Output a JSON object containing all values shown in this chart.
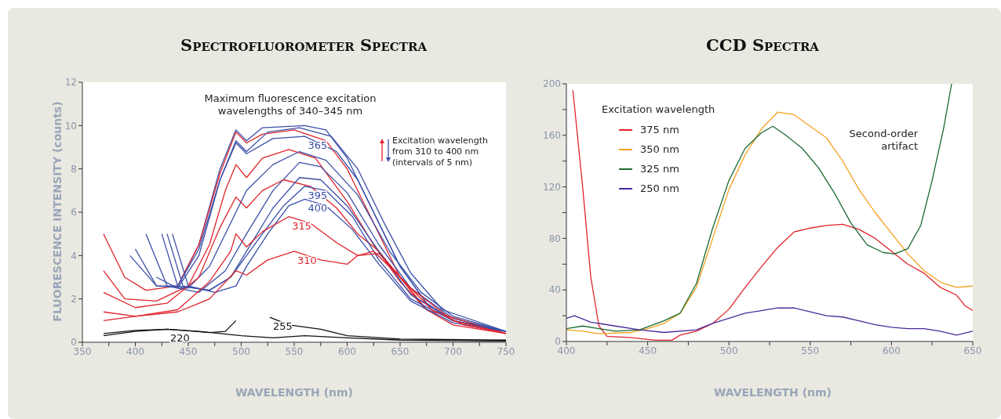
{
  "chart_data": [
    {
      "type": "line",
      "title": "Spectrofluorometer Spectra",
      "xlabel": "WAVELENGTH (nm)",
      "ylabel": "FLUORESCENCE INTENSITY (counts)",
      "annotations": [
        "Maximum fluorescence excitation wavelengths of 340–345 nm",
        "Excitation wavelength from 310 to 400 nm (intervals of 5 nm)"
      ],
      "xlim": [
        350,
        750
      ],
      "ylim": [
        0,
        12
      ],
      "xticks": [
        350,
        {
          "value": 375,
          "label": null
        },
        400,
        {
          "value": 425,
          "label": null
        },
        450,
        {
          "value": 475,
          "label": null
        },
        500,
        {
          "value": 525,
          "label": null
        },
        550,
        {
          "value": 575,
          "label": null
        },
        600,
        {
          "value": 625,
          "label": null
        },
        650,
        {
          "value": 675,
          "label": null
        },
        700,
        {
          "value": 725,
          "label": null
        },
        750
      ],
      "yticks": [
        0,
        2,
        4,
        6,
        8,
        10,
        12
      ],
      "series": [
        {
          "color": "#3a4fa8",
          "x": [
            440,
            460,
            480,
            495,
            505,
            520,
            560,
            580,
            600,
            625,
            650,
            675,
            700,
            750
          ],
          "values": [
            2.6,
            4.5,
            8,
            9.8,
            9.3,
            9.9,
            10,
            9.8,
            8.5,
            6,
            3.5,
            1.8,
            1,
            0.5
          ]
        },
        {
          "color": "#e0242c",
          "x": [
            370,
            390,
            410,
            440,
            460,
            480,
            495,
            505,
            520,
            550,
            580,
            600,
            625,
            650,
            675,
            700,
            750
          ],
          "values": [
            5,
            3,
            2.4,
            2.6,
            4.5,
            7.8,
            9.7,
            9.2,
            9.6,
            9.8,
            9.3,
            8,
            5.5,
            3,
            1.5,
            0.8,
            0.4
          ]
        },
        {
          "color": "#3a4fa8",
          "x": [
            420,
            440,
            460,
            480,
            495,
            505,
            525,
            555,
            585,
            610,
            635,
            660,
            690,
            750
          ],
          "values": [
            3,
            2.5,
            4,
            7.5,
            9.3,
            8.8,
            9.7,
            9.9,
            9.5,
            8,
            5.5,
            3.2,
            1.5,
            0.5
          ]
        },
        {
          "name": "365",
          "color": "#3a4fa8",
          "x": [
            400,
            420,
            440,
            460,
            480,
            495,
            505,
            530,
            560,
            590,
            610,
            630,
            650,
            675,
            700,
            750
          ],
          "values": [
            4.3,
            2.6,
            2.6,
            4.3,
            7.5,
            9.2,
            8.7,
            9.4,
            9.5,
            8.8,
            7.5,
            5.5,
            3.5,
            1.8,
            1,
            0.5
          ]
        },
        {
          "color": "#e0242c",
          "x": [
            370,
            390,
            420,
            450,
            470,
            485,
            495,
            505,
            520,
            545,
            570,
            600,
            625,
            650,
            675,
            750
          ],
          "values": [
            3.3,
            2,
            1.9,
            2.6,
            4.5,
            7,
            8.2,
            7.6,
            8.5,
            8.9,
            8.5,
            6.5,
            4.5,
            2.8,
            1.5,
            0.4
          ]
        },
        {
          "color": "#3a4fa8",
          "x": [
            395,
            420,
            450,
            470,
            490,
            505,
            530,
            555,
            580,
            610,
            640,
            670,
            700,
            750
          ],
          "values": [
            4,
            2.6,
            2.5,
            3.5,
            5.5,
            7,
            8.2,
            8.8,
            8.4,
            6.8,
            4.2,
            2.3,
            1.2,
            0.5
          ]
        },
        {
          "color": "#3a4fa8",
          "x": [
            410,
            430,
            460,
            485,
            505,
            530,
            555,
            575,
            600,
            630,
            660,
            700,
            750
          ],
          "values": [
            5,
            2.6,
            2.3,
            3.3,
            5,
            7,
            8.3,
            8.1,
            6.9,
            4.5,
            2.5,
            1.1,
            0.5
          ]
        },
        {
          "color": "#e0242c",
          "x": [
            370,
            400,
            430,
            460,
            480,
            495,
            505,
            520,
            540,
            565,
            590,
            610,
            630,
            650,
            675,
            750
          ],
          "values": [
            2.3,
            1.6,
            1.8,
            3,
            5.3,
            6.7,
            6.2,
            7,
            7.5,
            7.2,
            6.2,
            5,
            4.2,
            3,
            1.5,
            0.4
          ]
        },
        {
          "color": "#3a4fa8",
          "x": [
            425,
            440,
            470,
            490,
            505,
            530,
            555,
            575,
            600,
            630,
            660,
            700,
            750
          ],
          "values": [
            5,
            2.6,
            2.4,
            3,
            4.2,
            6.2,
            7.6,
            7.5,
            6.3,
            4.2,
            2.2,
            1,
            0.5
          ]
        },
        {
          "name": "395",
          "color": "#3a4fa8",
          "x": [
            430,
            445,
            470,
            490,
            505,
            520,
            540,
            560,
            580,
            605,
            630,
            660,
            700,
            750
          ],
          "values": [
            5,
            2.6,
            2.4,
            3,
            4,
            5,
            6.3,
            7.2,
            7,
            5.8,
            3.8,
            2,
            1,
            0.5
          ]
        },
        {
          "name": "400",
          "color": "#3a4fa8",
          "x": [
            435,
            450,
            475,
            495,
            505,
            525,
            545,
            560,
            580,
            605,
            630,
            660,
            700,
            750
          ],
          "values": [
            5,
            2.6,
            2.3,
            2.6,
            3.5,
            5,
            6.3,
            6.6,
            6.3,
            5.2,
            3.6,
            1.9,
            0.9,
            0.5
          ]
        },
        {
          "name": "315",
          "color": "#e0242c",
          "x": [
            370,
            400,
            440,
            470,
            490,
            495,
            505,
            520,
            545,
            565,
            590,
            610,
            630,
            660,
            700,
            750
          ],
          "values": [
            1.4,
            1.2,
            1.5,
            2.8,
            4.2,
            5,
            4.4,
            5.1,
            5.8,
            5.5,
            4.6,
            4,
            4.1,
            2.5,
            1,
            0.4
          ]
        },
        {
          "name": "310",
          "color": "#e0242c",
          "x": [
            370,
            400,
            440,
            470,
            495,
            505,
            525,
            550,
            575,
            600,
            610,
            625,
            650,
            680,
            710,
            750
          ],
          "values": [
            1,
            1.2,
            1.4,
            2,
            3.3,
            3.1,
            3.8,
            4.2,
            3.8,
            3.6,
            4,
            4.2,
            3,
            1.5,
            0.8,
            0.4
          ]
        },
        {
          "name": "220",
          "color": "#111111",
          "x": [
            370,
            400,
            430,
            460,
            500,
            530,
            560,
            600,
            650,
            750
          ],
          "values": [
            0.3,
            0.5,
            0.6,
            0.5,
            0.3,
            0.2,
            0.3,
            0.2,
            0.1,
            0.05
          ]
        },
        {
          "name": "255",
          "color": "#111111",
          "x": [
            370,
            400,
            430,
            470,
            485,
            495,
            510,
            527,
            545,
            575,
            600,
            650,
            750
          ],
          "values": [
            0.4,
            0.55,
            0.6,
            0.45,
            0.5,
            1,
            null,
            1.15,
            0.8,
            0.6,
            0.3,
            0.15,
            0.1
          ]
        }
      ]
    },
    {
      "type": "line",
      "title": "CCD Spectra",
      "xlabel": "WAVELENGTH (nm)",
      "legend": "top left",
      "legend_title": "Excitation wavelength",
      "annotations": [
        "Second-order artifact"
      ],
      "xlim": [
        400,
        650
      ],
      "ylim": [
        0,
        200
      ],
      "xticks": [
        400,
        {
          "value": 425,
          "label": null
        },
        450,
        {
          "value": 475,
          "label": null
        },
        500,
        {
          "value": 525,
          "label": null
        },
        550,
        {
          "value": 575,
          "label": null
        },
        600,
        {
          "value": 625,
          "label": null
        },
        650
      ],
      "yticks": [
        0,
        {
          "value": 20,
          "label": null
        },
        40,
        {
          "value": 60,
          "label": null
        },
        80,
        {
          "value": 100,
          "label": null
        },
        120,
        {
          "value": 140,
          "label": null
        },
        160,
        {
          "value": 180,
          "label": null
        },
        200
      ],
      "series": [
        {
          "name": "375 nm",
          "color": "#e0242c",
          "x": [
            404,
            410,
            415,
            420,
            425,
            440,
            455,
            465,
            470,
            480,
            490,
            500,
            510,
            520,
            530,
            540,
            550,
            560,
            570,
            580,
            590,
            600,
            610,
            620,
            630,
            640,
            645,
            650
          ],
          "values": [
            195,
            120,
            50,
            12,
            4,
            3,
            1,
            1,
            5,
            8,
            14,
            25,
            42,
            58,
            73,
            85,
            88,
            90,
            91,
            87,
            80,
            70,
            60,
            53,
            42,
            36,
            28,
            24
          ]
        },
        {
          "name": "350 nm",
          "color": "#f5a020",
          "x": [
            400,
            410,
            420,
            440,
            450,
            460,
            470,
            480,
            490,
            500,
            510,
            520,
            530,
            540,
            550,
            560,
            570,
            580,
            590,
            600,
            610,
            620,
            630,
            640,
            650
          ],
          "values": [
            9,
            8,
            6,
            7,
            10,
            14,
            22,
            42,
            80,
            118,
            145,
            165,
            178,
            176,
            167,
            158,
            140,
            118,
            100,
            84,
            68,
            55,
            46,
            42,
            43
          ]
        },
        {
          "name": "325 nm",
          "color": "#1a6b32",
          "x": [
            400,
            410,
            420,
            430,
            445,
            460,
            470,
            480,
            490,
            500,
            510,
            520,
            527,
            535,
            545,
            555,
            565,
            575,
            585,
            595,
            602,
            610,
            618,
            625,
            632,
            637
          ],
          "values": [
            10,
            12,
            10,
            8,
            9,
            16,
            22,
            45,
            88,
            125,
            150,
            162,
            167,
            160,
            150,
            135,
            115,
            92,
            75,
            69,
            68,
            72,
            90,
            125,
            165,
            200
          ]
        },
        {
          "name": "250 nm",
          "color": "#4b2a9a",
          "x": [
            400,
            405,
            415,
            430,
            445,
            460,
            480,
            490,
            500,
            510,
            520,
            530,
            540,
            550,
            560,
            570,
            580,
            590,
            600,
            610,
            620,
            630,
            640,
            650
          ],
          "values": [
            18,
            20,
            15,
            12,
            9,
            7,
            9,
            14,
            18,
            22,
            24,
            26,
            26,
            23,
            20,
            19,
            16,
            13,
            11,
            10,
            10,
            8,
            5,
            8
          ]
        }
      ]
    }
  ]
}
